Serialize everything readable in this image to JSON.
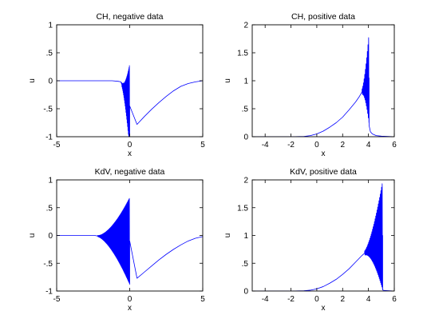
{
  "chart_data": [
    {
      "type": "line",
      "title": "CH, negative data",
      "xlabel": "x",
      "ylabel": "u",
      "xlim": [
        -5,
        5
      ],
      "ylim": [
        -1,
        1
      ],
      "xticks": [
        -5,
        0,
        5
      ],
      "yticks": [
        -1,
        -0.5,
        0,
        0.5,
        1
      ],
      "grid": false,
      "color": "#0000ff",
      "series": [
        {
          "smooth": [
            [
              -5,
              0
            ],
            [
              -1.2,
              0
            ],
            [
              -0.8,
              -0.01
            ],
            [
              -0.6,
              -0.02
            ],
            [
              -0.45,
              -0.04
            ],
            [
              0,
              -0.93
            ],
            [
              0.5,
              -0.78
            ],
            [
              1,
              -0.64
            ],
            [
              1.5,
              -0.51
            ],
            [
              2,
              -0.39
            ],
            [
              2.5,
              -0.28
            ],
            [
              3,
              -0.18
            ],
            [
              3.5,
              -0.1
            ],
            [
              4,
              -0.05
            ],
            [
              4.5,
              -0.02
            ],
            [
              5,
              0
            ]
          ],
          "oscillation": {
            "x_start": -0.55,
            "x_end": 0.0,
            "center_start": -0.06,
            "center_end": -0.45,
            "amp_start": 0.03,
            "amp_end": 0.75,
            "cycles": 20
          }
        }
      ]
    },
    {
      "type": "line",
      "title": "CH, positive data",
      "xlabel": "x",
      "ylabel": "u",
      "xlim": [
        -5,
        6
      ],
      "ylim": [
        0,
        2
      ],
      "xticks": [
        -4,
        -2,
        0,
        2,
        4,
        6
      ],
      "yticks": [
        0,
        0.5,
        1,
        1.5,
        2
      ],
      "grid": false,
      "color": "#0000ff",
      "series": [
        {
          "smooth": [
            [
              -5,
              0
            ],
            [
              -2,
              0
            ],
            [
              -1,
              0.005
            ],
            [
              -0.5,
              0.02
            ],
            [
              0,
              0.05
            ],
            [
              0.5,
              0.1
            ],
            [
              1,
              0.17
            ],
            [
              1.5,
              0.25
            ],
            [
              2,
              0.35
            ],
            [
              2.5,
              0.48
            ],
            [
              3,
              0.62
            ],
            [
              3.3,
              0.72
            ],
            [
              3.5,
              0.8
            ]
          ],
          "oscillation": {
            "x_start": 3.5,
            "x_end": 4.05,
            "center_start": 0.8,
            "center_end": 1.05,
            "amp_start": 0.05,
            "amp_end": 0.82,
            "cycles": 11
          },
          "tail": [
            [
              4.05,
              0.2
            ],
            [
              4.15,
              0.09
            ],
            [
              4.3,
              0.05
            ],
            [
              4.6,
              0.02
            ],
            [
              5,
              0.01
            ],
            [
              6,
              0
            ]
          ]
        }
      ]
    },
    {
      "type": "line",
      "title": "KdV, negative data",
      "xlabel": "x",
      "ylabel": "u",
      "xlim": [
        -5,
        5
      ],
      "ylim": [
        -1,
        1
      ],
      "xticks": [
        -5,
        0,
        5
      ],
      "yticks": [
        -1,
        -0.5,
        0,
        0.5,
        1
      ],
      "grid": false,
      "color": "#0000ff",
      "series": [
        {
          "smooth": [
            [
              -5,
              0
            ],
            [
              -2.6,
              0
            ],
            [
              -2.4,
              0
            ],
            [
              -2.2,
              -0.01
            ],
            [
              0,
              -0.88
            ],
            [
              0.5,
              -0.77
            ],
            [
              1,
              -0.66
            ],
            [
              1.5,
              -0.55
            ],
            [
              2,
              -0.44
            ],
            [
              2.5,
              -0.34
            ],
            [
              3,
              -0.25
            ],
            [
              3.5,
              -0.17
            ],
            [
              4,
              -0.1
            ],
            [
              4.5,
              -0.05
            ],
            [
              5,
              -0.02
            ]
          ],
          "oscillation": {
            "x_start": -2.2,
            "x_end": 0.0,
            "center_start": -0.01,
            "center_end": -0.1,
            "amp_start": 0.01,
            "amp_end": 0.78,
            "cycles": 70
          }
        }
      ]
    },
    {
      "type": "line",
      "title": "KdV, positive data",
      "xlabel": "x",
      "ylabel": "u",
      "xlim": [
        -5,
        6
      ],
      "ylim": [
        0,
        2
      ],
      "xticks": [
        -4,
        -2,
        0,
        2,
        4,
        6
      ],
      "yticks": [
        0,
        0.5,
        1,
        1.5,
        2
      ],
      "grid": false,
      "color": "#0000ff",
      "series": [
        {
          "smooth": [
            [
              -5,
              0
            ],
            [
              -2,
              0
            ],
            [
              -1,
              0.005
            ],
            [
              -0.5,
              0.015
            ],
            [
              0,
              0.04
            ],
            [
              0.5,
              0.08
            ],
            [
              1,
              0.14
            ],
            [
              1.5,
              0.21
            ],
            [
              2,
              0.3
            ],
            [
              2.5,
              0.4
            ],
            [
              3,
              0.52
            ],
            [
              3.5,
              0.64
            ],
            [
              3.7,
              0.68
            ]
          ],
          "oscillation": {
            "x_start": 3.7,
            "x_end": 5.1,
            "center_start": 0.68,
            "center_end": 1.0,
            "amp_start": 0.04,
            "amp_end": 0.98,
            "cycles": 28
          },
          "tail": [
            [
              5.1,
              0.02
            ],
            [
              5.2,
              0.01
            ],
            [
              6,
              0
            ]
          ]
        }
      ]
    }
  ]
}
